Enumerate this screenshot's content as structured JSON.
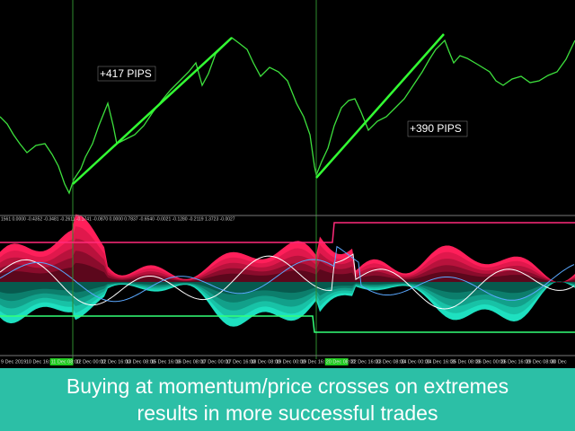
{
  "annotations": {
    "first": "+417 PIPS",
    "second": "+390 PIPS"
  },
  "indicator_header": "1561 0.0000 -0.4352 -0.3481 -0.2611 -0.1741 -0.0870 0.0000 0.7837 -0.6540 -0.0021 -0.1280 -0.2119 1.3723 -0.0027",
  "time_axis": [
    "9 Dec 2019",
    "10 Dec 16:00",
    "11 Dec 08:00",
    "12 Dec 00:00",
    "12 Dec 16:00",
    "13 Dec 08:00",
    "15 Dec 16:00",
    "16 Dec 08:00",
    "17 Dec 00:00",
    "17 Dec 16:00",
    "18 Dec 08:00",
    "19 Dec 00:00",
    "19 Dec 16:00",
    "20 Dec 08:00",
    "22 Dec 16:00",
    "23 Dec 08:00",
    "24 Dec 00:00",
    "24 Dec 16:00",
    "25 Dec 08:00",
    "26 Dec 00:00",
    "26 Dec 16:00",
    "29 Dec 08:00",
    "30 Dec"
  ],
  "caption": {
    "line1": "Buying at momentum/price crosses on extremes",
    "line2": "results in more successful trades"
  }
}
